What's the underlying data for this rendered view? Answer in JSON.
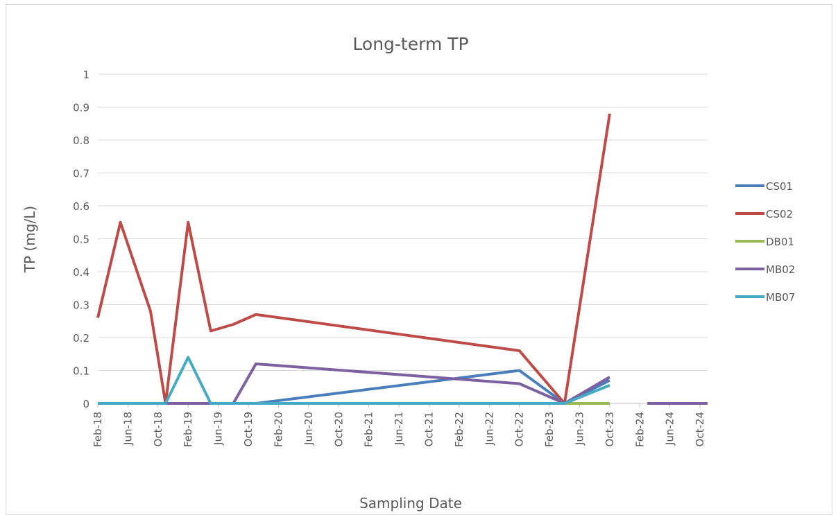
{
  "chart_data": {
    "type": "line",
    "title": "Long-term TP",
    "x_label": "Sampling Date",
    "y_label": "TP (mg/L)",
    "x": [
      "2018-02",
      "2018-05",
      "2018-09",
      "2018-11",
      "2019-02",
      "2019-05",
      "2019-08",
      "2019-11",
      "2022-10",
      "2023-04",
      "2023-10",
      "2024-01",
      "2024-03",
      "2024-11"
    ],
    "series": [
      {
        "name": "CS01",
        "color": "#4a7ebb",
        "values": [
          0,
          0,
          0,
          0,
          0,
          0,
          0,
          0,
          0.1,
          0,
          0.07,
          null,
          null,
          null
        ]
      },
      {
        "name": "CS02",
        "color": "#be4b48",
        "values": [
          0.26,
          0.55,
          0.28,
          0,
          0.55,
          0.22,
          0.24,
          0.27,
          0.16,
          0,
          0.88,
          null,
          null,
          null
        ]
      },
      {
        "name": "DB01",
        "color": "#98b954",
        "values": [
          0,
          0,
          0,
          0,
          0,
          0,
          0,
          0,
          0,
          0,
          0,
          null,
          null,
          null
        ]
      },
      {
        "name": "MB02",
        "color": "#7d60a0",
        "values": [
          0,
          0,
          0,
          0,
          0,
          0,
          0,
          0.12,
          0.06,
          0,
          0.08,
          null,
          0,
          0
        ]
      },
      {
        "name": "MB07",
        "color": "#46aac5",
        "values": [
          0,
          0,
          0,
          0,
          0.14,
          0,
          0,
          0,
          0,
          0,
          0.055,
          null,
          null,
          null
        ]
      }
    ],
    "xlim": [
      "2018-02",
      "2024-11"
    ],
    "xticks": [
      {
        "value": "2018-02",
        "label": "Feb-18"
      },
      {
        "value": "2018-06",
        "label": "Jun-18"
      },
      {
        "value": "2018-10",
        "label": "Oct-18"
      },
      {
        "value": "2019-02",
        "label": "Feb-19"
      },
      {
        "value": "2019-06",
        "label": "Jun-19"
      },
      {
        "value": "2019-10",
        "label": "Oct-19"
      },
      {
        "value": "2020-02",
        "label": "Feb-20"
      },
      {
        "value": "2020-06",
        "label": "Jun-20"
      },
      {
        "value": "2020-10",
        "label": "Oct-20"
      },
      {
        "value": "2021-02",
        "label": "Feb-21"
      },
      {
        "value": "2021-06",
        "label": "Jun-21"
      },
      {
        "value": "2021-10",
        "label": "Oct-21"
      },
      {
        "value": "2022-02",
        "label": "Feb-22"
      },
      {
        "value": "2022-06",
        "label": "Jun-22"
      },
      {
        "value": "2022-10",
        "label": "Oct-22"
      },
      {
        "value": "2023-02",
        "label": "Feb-23"
      },
      {
        "value": "2023-06",
        "label": "Jun-23"
      },
      {
        "value": "2023-10",
        "label": "Oct-23"
      },
      {
        "value": "2024-02",
        "label": "Feb-24"
      },
      {
        "value": "2024-06",
        "label": "Jun-24"
      },
      {
        "value": "2024-10",
        "label": "Oct-24"
      }
    ],
    "ylim": [
      0,
      1
    ],
    "yticks": [
      0,
      0.1,
      0.2,
      0.3,
      0.4,
      0.5,
      0.6,
      0.7,
      0.8,
      0.9,
      1
    ],
    "grid": true,
    "legend": "right"
  }
}
